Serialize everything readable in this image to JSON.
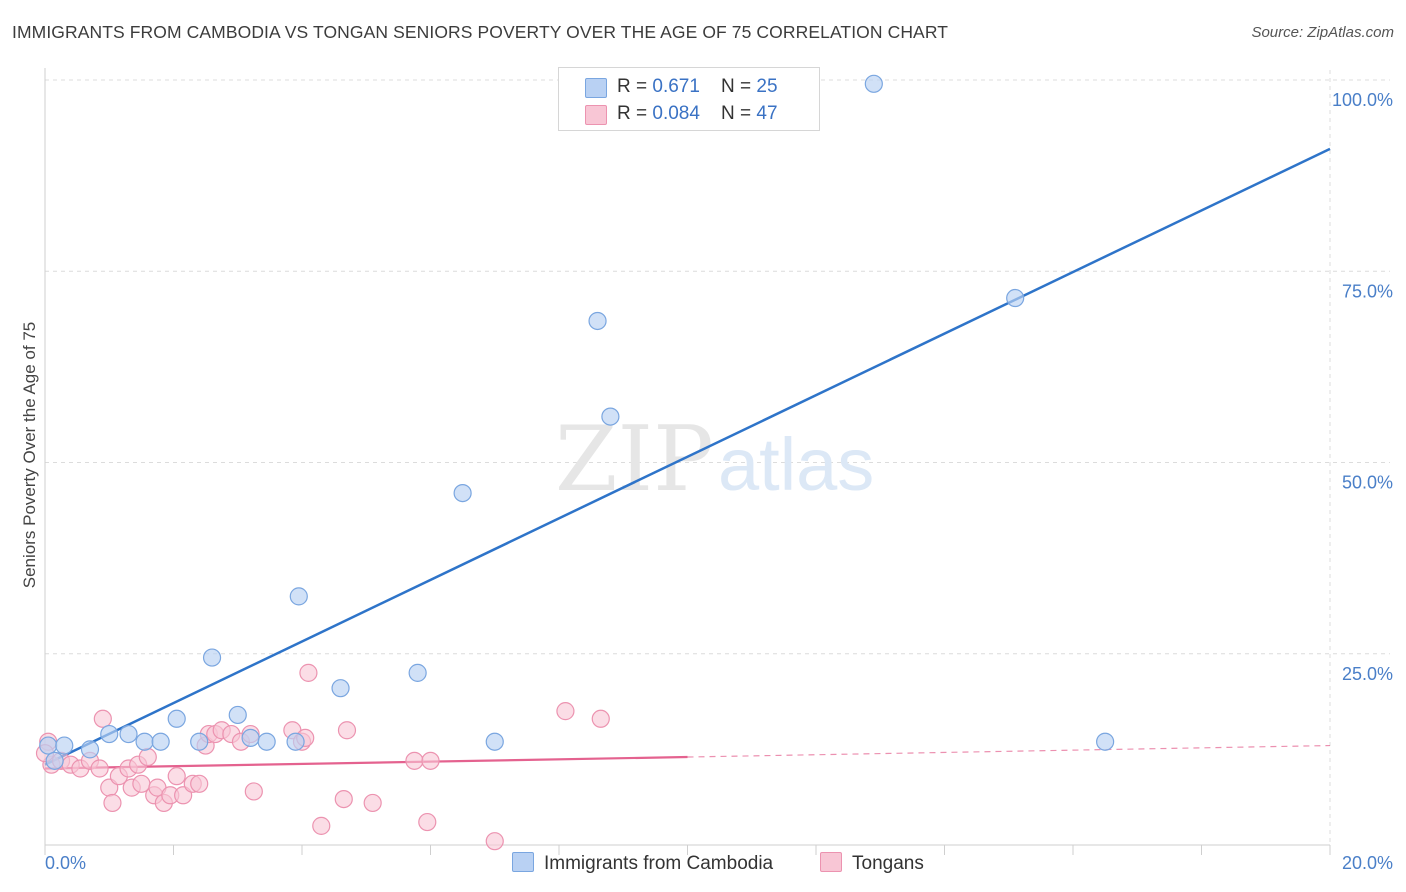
{
  "header": {
    "title": "IMMIGRANTS FROM CAMBODIA VS TONGAN SENIORS POVERTY OVER THE AGE OF 75 CORRELATION CHART",
    "source": "Source: ZipAtlas.com"
  },
  "watermark": {
    "zip": "ZIP",
    "atlas": "atlas"
  },
  "colors": {
    "blue_fill": "#b9d1f3",
    "blue_stroke": "#7aa6e0",
    "blue_line": "#2e74c9",
    "pink_fill": "#f8c6d5",
    "pink_stroke": "#ec93b0",
    "pink_line": "#e4628f",
    "tick_text": "#4a7fc8",
    "grid": "#dcdcdc"
  },
  "legend": {
    "rows": [
      {
        "r_label": "R = ",
        "r_value": "0.671",
        "n_label": "N = ",
        "n_value": "25"
      },
      {
        "r_label": "R = ",
        "r_value": "0.084",
        "n_label": "N = ",
        "n_value": "47"
      }
    ]
  },
  "chart_data": {
    "type": "scatter",
    "title": "IMMIGRANTS FROM CAMBODIA VS TONGAN SENIORS POVERTY OVER THE AGE OF 75 CORRELATION CHART",
    "xlabel": "",
    "ylabel": "Seniors Poverty Over the Age of 75",
    "xlim": [
      0,
      20
    ],
    "ylim": [
      0,
      100
    ],
    "x_tick_labels": [
      "0.0%",
      "20.0%"
    ],
    "y_ticks": [
      25,
      50,
      75,
      100
    ],
    "y_tick_labels": [
      "25.0%",
      "50.0%",
      "75.0%",
      "100.0%"
    ],
    "grid": true,
    "legend_position": "bottom",
    "series": [
      {
        "name": "Immigrants from Cambodia",
        "points": [
          [
            0.05,
            13
          ],
          [
            0.3,
            13
          ],
          [
            0.7,
            12.5
          ],
          [
            1.0,
            14.5
          ],
          [
            1.3,
            14.5
          ],
          [
            1.55,
            13.5
          ],
          [
            1.8,
            13.5
          ],
          [
            2.05,
            16.5
          ],
          [
            2.4,
            13.5
          ],
          [
            2.6,
            24.5
          ],
          [
            3.0,
            17
          ],
          [
            3.2,
            14
          ],
          [
            3.45,
            13.5
          ],
          [
            3.9,
            13.5
          ],
          [
            3.95,
            32.5
          ],
          [
            4.6,
            20.5
          ],
          [
            5.8,
            22.5
          ],
          [
            6.5,
            46
          ],
          [
            7.0,
            13.5
          ],
          [
            8.6,
            68.5
          ],
          [
            8.8,
            56
          ],
          [
            12.9,
            99.5
          ],
          [
            15.1,
            71.5
          ],
          [
            16.5,
            13.5
          ],
          [
            0.15,
            11
          ]
        ],
        "trend": {
          "x": [
            0,
            20
          ],
          "y": [
            10.5,
            91
          ]
        }
      },
      {
        "name": "Tongans",
        "points": [
          [
            0.05,
            13.5
          ],
          [
            0.1,
            10.5
          ],
          [
            0.25,
            11
          ],
          [
            0.4,
            10.5
          ],
          [
            0.55,
            10
          ],
          [
            0.7,
            11
          ],
          [
            0.85,
            10
          ],
          [
            0.9,
            16.5
          ],
          [
            1.0,
            7.5
          ],
          [
            1.05,
            5.5
          ],
          [
            1.15,
            9
          ],
          [
            1.3,
            10
          ],
          [
            1.35,
            7.5
          ],
          [
            1.45,
            10.5
          ],
          [
            1.5,
            8
          ],
          [
            1.6,
            11.5
          ],
          [
            1.7,
            6.5
          ],
          [
            1.75,
            7.5
          ],
          [
            1.85,
            5.5
          ],
          [
            1.95,
            6.5
          ],
          [
            2.05,
            9
          ],
          [
            2.15,
            6.5
          ],
          [
            2.3,
            8
          ],
          [
            2.4,
            8
          ],
          [
            2.5,
            13
          ],
          [
            2.55,
            14.5
          ],
          [
            2.65,
            14.5
          ],
          [
            2.75,
            15
          ],
          [
            2.9,
            14.5
          ],
          [
            3.05,
            13.5
          ],
          [
            3.2,
            14.5
          ],
          [
            3.25,
            7
          ],
          [
            3.85,
            15
          ],
          [
            4.0,
            13.5
          ],
          [
            4.05,
            14
          ],
          [
            4.1,
            22.5
          ],
          [
            4.3,
            2.5
          ],
          [
            4.65,
            6
          ],
          [
            4.7,
            15
          ],
          [
            5.1,
            5.5
          ],
          [
            5.75,
            11
          ],
          [
            6.0,
            11
          ],
          [
            5.95,
            3
          ],
          [
            7.0,
            0.5
          ],
          [
            8.1,
            17.5
          ],
          [
            8.65,
            16.5
          ],
          [
            0.0,
            12
          ]
        ],
        "trend_solid": {
          "x": [
            0,
            10
          ],
          "y": [
            10,
            11.5
          ]
        },
        "trend_dashed": {
          "x": [
            10,
            20
          ],
          "y": [
            11.5,
            13
          ]
        }
      }
    ]
  }
}
